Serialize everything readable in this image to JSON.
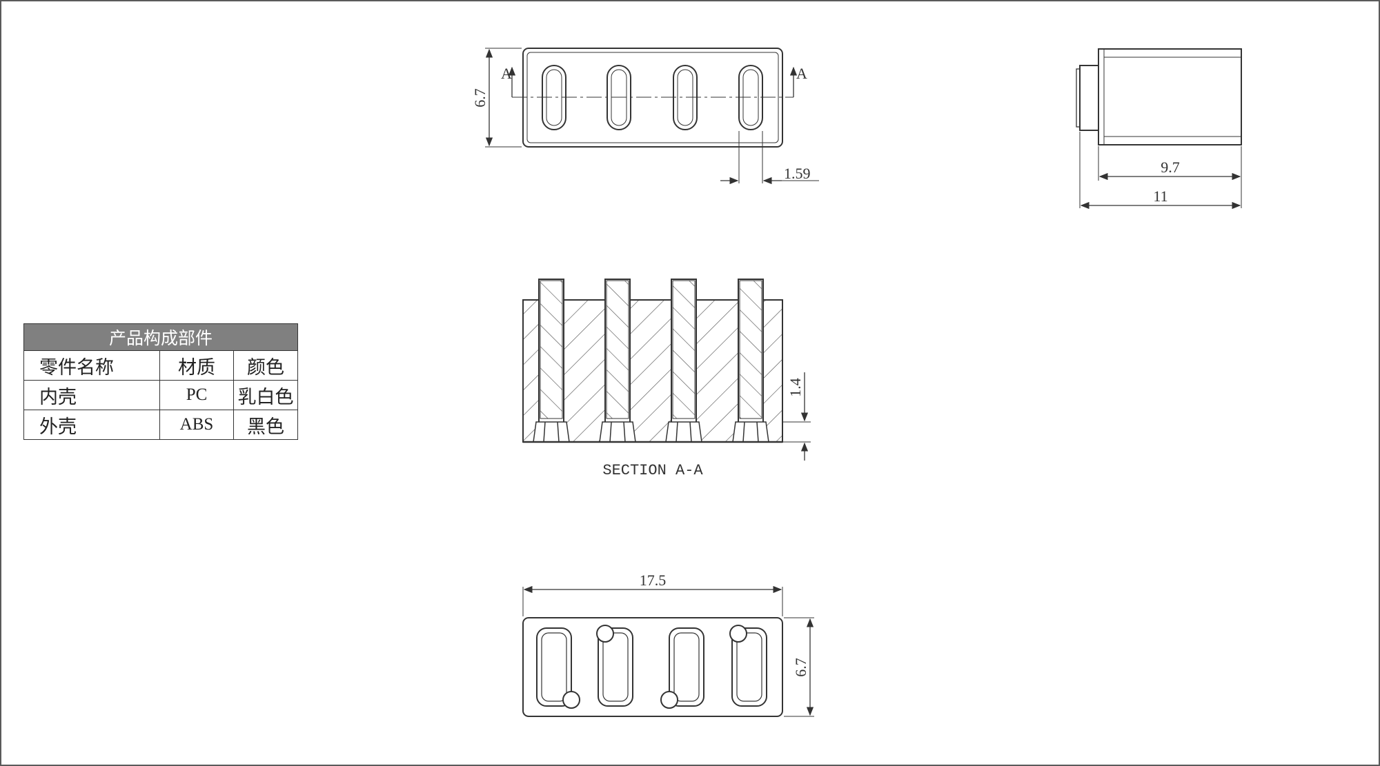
{
  "drawing": {
    "front_view": {
      "height_dim": "6.7",
      "pitch_dim": "1.59",
      "section_mark_left": "A",
      "section_mark_right": "A"
    },
    "side_view": {
      "inner_length_dim": "9.7",
      "overall_length_dim": "11"
    },
    "section_view": {
      "height_dim": "1.4",
      "caption": "SECTION A-A"
    },
    "bottom_view": {
      "width_dim": "17.5",
      "height_dim": "6.7"
    }
  },
  "bom": {
    "title": "产品构成部件",
    "headers": [
      "零件名称",
      "材质",
      "颜色"
    ],
    "rows": [
      {
        "part": "内壳",
        "material": "PC",
        "color": "乳白色"
      },
      {
        "part": "外壳",
        "material": "ABS",
        "color": "黑色"
      }
    ]
  },
  "colors": {
    "line": "#333333",
    "header_bg": "#808080",
    "frame": "#5a5a5a"
  }
}
